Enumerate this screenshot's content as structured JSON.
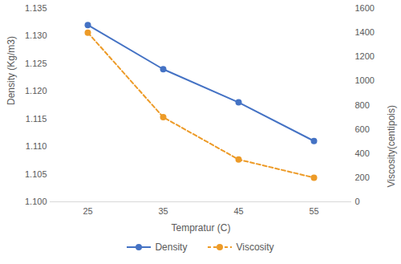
{
  "chart_data": {
    "type": "line",
    "x_label": "Tempratur (C)",
    "y_label": "Density (Kg/m3)",
    "y2_label": "Viscosity(centipois)",
    "categories": [
      "25",
      "35",
      "45",
      "55"
    ],
    "ylim": [
      1.1,
      1.135
    ],
    "yticks": [
      1.1,
      1.105,
      1.11,
      1.115,
      1.12,
      1.125,
      1.13,
      1.135
    ],
    "y2lim": [
      0,
      1600
    ],
    "y2ticks": [
      0,
      200,
      400,
      600,
      800,
      1000,
      1200,
      1400,
      1600
    ],
    "grid": false,
    "legend": "bottom",
    "series": [
      {
        "name": "Density",
        "color": "#4472c4",
        "marker": "circle",
        "line_style": "solid",
        "values": [
          1.132,
          1.124,
          1.118,
          1.111
        ]
      },
      {
        "name": "Viscosity",
        "color": "#ed9b28",
        "marker": "circle",
        "line_style": "dashed",
        "axis": "y2",
        "values": [
          1400,
          700,
          350,
          200
        ]
      }
    ]
  }
}
